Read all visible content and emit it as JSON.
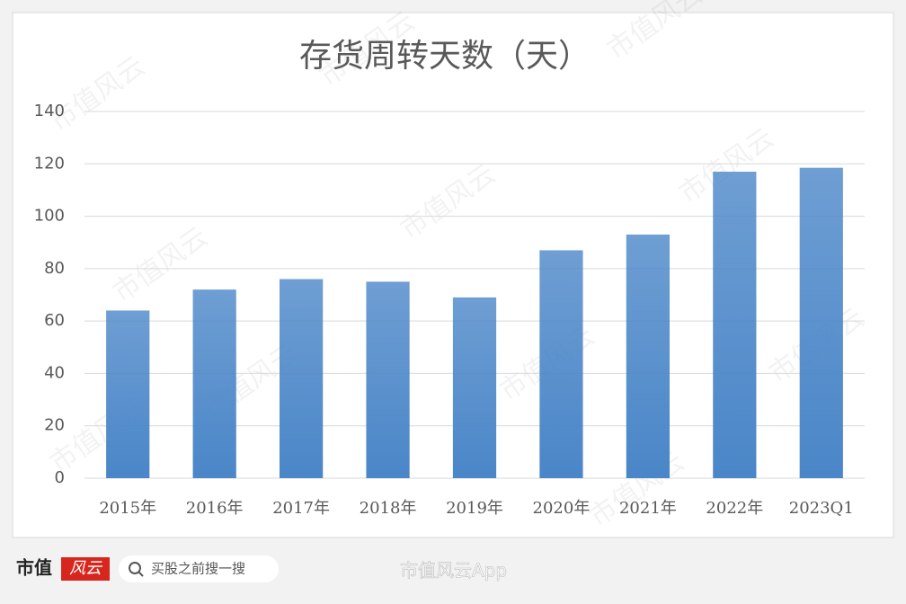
{
  "chart_data": {
    "type": "bar",
    "title": "存货周转天数（天）",
    "categories": [
      "2015年",
      "2016年",
      "2017年",
      "2018年",
      "2019年",
      "2020年",
      "2021年",
      "2022年",
      "2023Q1"
    ],
    "values": [
      64,
      72,
      76,
      75,
      69,
      87,
      93,
      117,
      118.5
    ],
    "color": "#4a86c8",
    "ylim": [
      0,
      140
    ],
    "yticks": [
      0,
      20,
      40,
      60,
      80,
      100,
      120,
      140
    ],
    "grid": true
  },
  "watermark": "市值风云",
  "footer": {
    "logo_main": "市值",
    "logo_accent": "风云",
    "search": "买股之前搜一搜",
    "source": "市值风云App"
  }
}
